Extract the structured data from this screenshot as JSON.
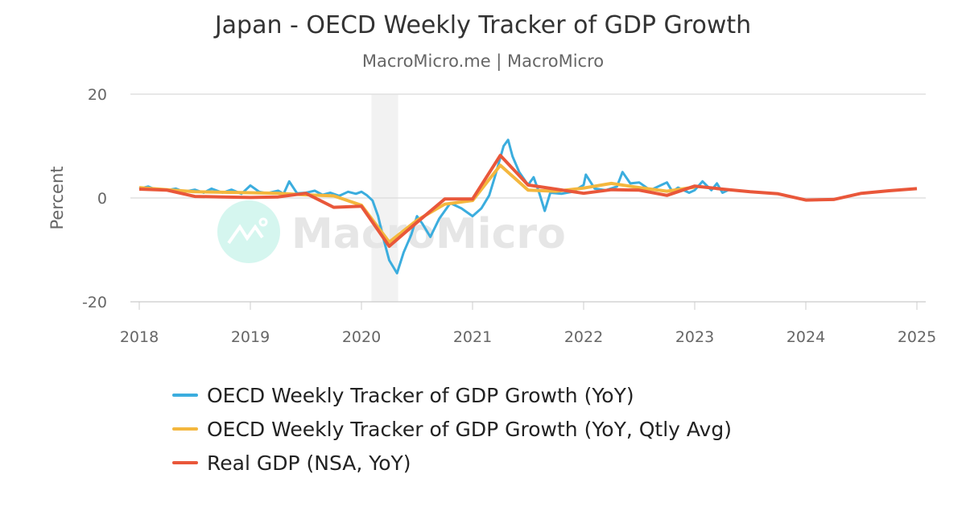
{
  "chart_data": {
    "type": "line",
    "title": "Japan - OECD Weekly Tracker of GDP Growth",
    "subtitle": "MacroMicro.me | MacroMicro",
    "ylabel": "Percent",
    "xlim": [
      2018,
      2025
    ],
    "ylim": [
      -20,
      20
    ],
    "x_ticks": [
      "2018",
      "2019",
      "2020",
      "2021",
      "2022",
      "2023",
      "2024",
      "2025"
    ],
    "y_ticks": [
      "20",
      "0",
      "-20"
    ],
    "grid": "horizontal",
    "legend_position": "bottom",
    "watermark": "MacroMicro",
    "shaded_region": {
      "start": 2020.09,
      "end": 2020.33
    },
    "series": [
      {
        "name": "OECD Weekly Tracker of GDP Growth (YoY)",
        "color": "#3badde",
        "x": [
          2018.0,
          2018.08,
          2018.15,
          2018.25,
          2018.33,
          2018.4,
          2018.5,
          2018.58,
          2018.65,
          2018.75,
          2018.83,
          2018.92,
          2019.0,
          2019.08,
          2019.15,
          2019.25,
          2019.3,
          2019.35,
          2019.42,
          2019.5,
          2019.58,
          2019.65,
          2019.72,
          2019.8,
          2019.88,
          2019.95,
          2020.0,
          2020.05,
          2020.1,
          2020.15,
          2020.2,
          2020.25,
          2020.32,
          2020.38,
          2020.45,
          2020.5,
          2020.55,
          2020.62,
          2020.7,
          2020.8,
          2020.9,
          2021.0,
          2021.08,
          2021.15,
          2021.2,
          2021.28,
          2021.32,
          2021.36,
          2021.42,
          2021.5,
          2021.55,
          2021.6,
          2021.65,
          2021.7,
          2021.8,
          2021.9,
          2022.0,
          2022.02,
          2022.1,
          2022.2,
          2022.3,
          2022.35,
          2022.42,
          2022.5,
          2022.6,
          2022.7,
          2022.75,
          2022.8,
          2022.85,
          2022.95,
          2023.0,
          2023.07,
          2023.15,
          2023.2,
          2023.25,
          2023.3
        ],
        "y": [
          1.8,
          2.2,
          1.6,
          1.5,
          1.8,
          1.2,
          1.6,
          1.0,
          1.8,
          1.0,
          1.6,
          0.8,
          2.4,
          1.2,
          0.9,
          1.4,
          0.8,
          3.2,
          0.9,
          1.0,
          1.4,
          0.6,
          1.0,
          0.4,
          1.2,
          0.8,
          1.2,
          0.5,
          -0.5,
          -3.5,
          -8.0,
          -12.0,
          -14.5,
          -10.5,
          -7.0,
          -3.5,
          -5.0,
          -7.5,
          -4.0,
          -1.0,
          -2.0,
          -3.5,
          -2.0,
          0.5,
          4.0,
          10.0,
          11.2,
          8.0,
          5.0,
          2.5,
          4.0,
          1.0,
          -2.5,
          1.0,
          0.8,
          1.2,
          2.5,
          4.5,
          1.8,
          1.5,
          2.2,
          5.0,
          2.8,
          3.0,
          1.5,
          2.5,
          3.0,
          1.2,
          2.0,
          1.0,
          1.5,
          3.2,
          1.5,
          2.8,
          1.0,
          1.5
        ]
      },
      {
        "name": "OECD Weekly Tracker of GDP Growth (YoY, Qtly Avg)",
        "color": "#f4b73e",
        "x": [
          2018.0,
          2018.25,
          2018.5,
          2018.75,
          2019.0,
          2019.25,
          2019.5,
          2019.75,
          2020.0,
          2020.25,
          2020.5,
          2020.75,
          2021.0,
          2021.25,
          2021.5,
          2021.75,
          2022.0,
          2022.25,
          2022.5,
          2022.75,
          2023.0
        ],
        "y": [
          2.0,
          1.6,
          1.2,
          1.1,
          1.0,
          0.9,
          0.6,
          0.4,
          -1.4,
          -8.5,
          -4.3,
          -1.2,
          -0.5,
          6.3,
          1.5,
          1.3,
          1.9,
          2.8,
          2.0,
          1.3,
          2.1
        ]
      },
      {
        "name": "Real GDP (NSA, YoY)",
        "color": "#e9573a",
        "x": [
          2018.0,
          2018.25,
          2018.5,
          2018.75,
          2019.0,
          2019.25,
          2019.5,
          2019.75,
          2020.0,
          2020.25,
          2020.5,
          2020.75,
          2021.0,
          2021.25,
          2021.5,
          2021.75,
          2022.0,
          2022.25,
          2022.5,
          2022.75,
          2023.0,
          2023.25,
          2023.5,
          2023.75,
          2024.0,
          2024.25,
          2024.5,
          2024.75,
          2025.0
        ],
        "y": [
          1.7,
          1.5,
          0.3,
          0.2,
          0.1,
          0.2,
          0.9,
          -1.8,
          -1.6,
          -9.3,
          -4.7,
          -0.2,
          -0.2,
          8.2,
          2.5,
          1.7,
          0.9,
          1.6,
          1.5,
          0.5,
          2.3,
          1.7,
          1.2,
          0.8,
          -0.4,
          -0.3,
          0.9,
          1.4,
          1.8
        ]
      }
    ]
  }
}
